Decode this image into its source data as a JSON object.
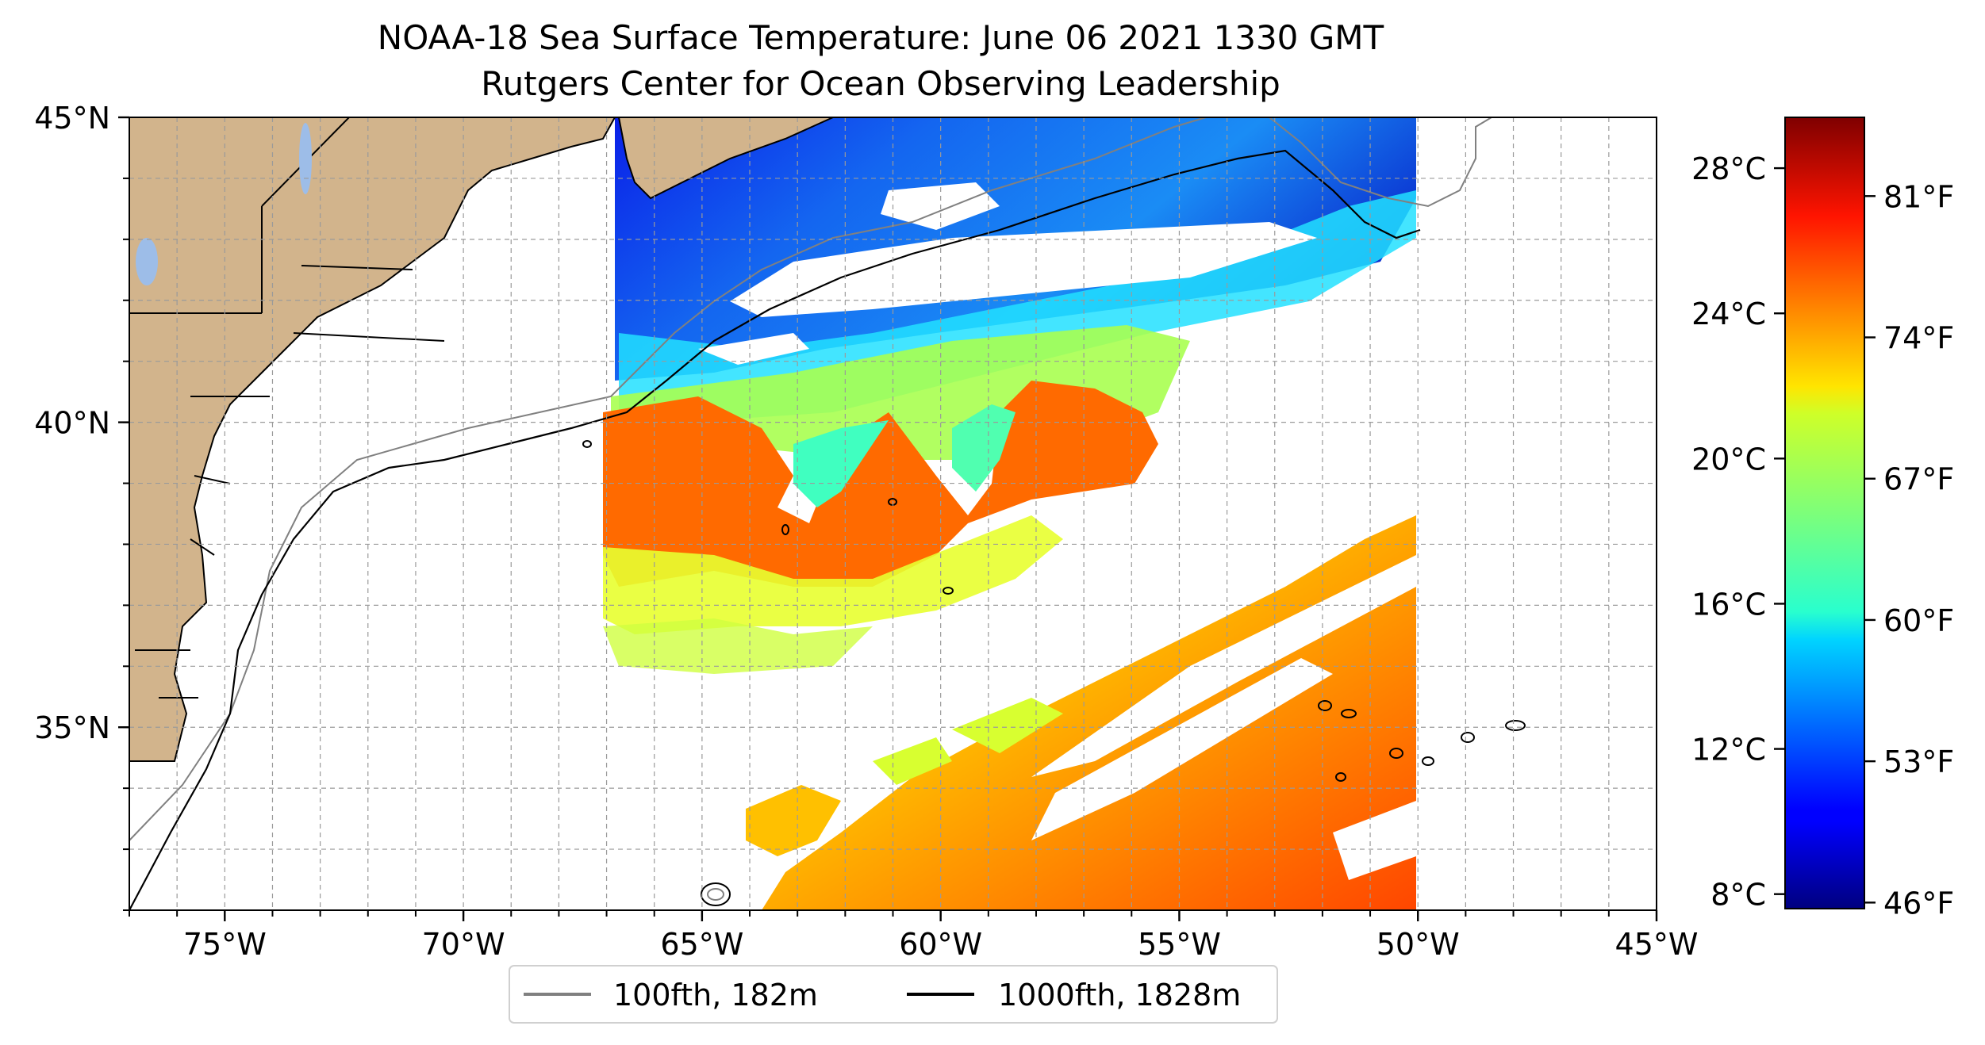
{
  "map": {
    "title": "NOAA-18 Sea Surface Temperature: June 06 2021 1330 GMT",
    "subtitle": "Rutgers Center for Ocean Observing Leadership",
    "lon_range": [
      -77,
      -45
    ],
    "lat_range": [
      32,
      45
    ],
    "lon_ticks": [
      {
        "value": -75,
        "label": "75°W"
      },
      {
        "value": -70,
        "label": "70°W"
      },
      {
        "value": -65,
        "label": "65°W"
      },
      {
        "value": -60,
        "label": "60°W"
      },
      {
        "value": -55,
        "label": "55°W"
      },
      {
        "value": -50,
        "label": "50°W"
      },
      {
        "value": -45,
        "label": "45°W"
      }
    ],
    "lat_ticks": [
      {
        "value": 45,
        "label": "45°N"
      },
      {
        "value": 40,
        "label": "40°N"
      },
      {
        "value": 35,
        "label": "35°N"
      }
    ],
    "gridlines": true,
    "land_color": "#d2b48c",
    "lake_color": "#9dbde8",
    "legend": {
      "position": "bottom-center",
      "items": [
        {
          "label": "100fth, 182m",
          "color": "#808080"
        },
        {
          "label": "1000fth, 1828m",
          "color": "#000000"
        }
      ]
    }
  },
  "colorbar": {
    "colormap": "jet",
    "celsius_range": [
      7.6,
      29.4
    ],
    "celsius_ticks": [
      {
        "value": 28,
        "label": "28°C"
      },
      {
        "value": 24,
        "label": "24°C"
      },
      {
        "value": 20,
        "label": "20°C"
      },
      {
        "value": 16,
        "label": "16°C"
      },
      {
        "value": 12,
        "label": "12°C"
      },
      {
        "value": 8,
        "label": "8°C"
      }
    ],
    "fahrenheit_range": [
      45.7,
      84.9
    ],
    "fahrenheit_ticks": [
      {
        "value": 81,
        "label": "81°F"
      },
      {
        "value": 74,
        "label": "74°F"
      },
      {
        "value": 67,
        "label": "67°F"
      },
      {
        "value": 60,
        "label": "60°F"
      },
      {
        "value": 53,
        "label": "53°F"
      },
      {
        "value": 46,
        "label": "46°F"
      }
    ]
  }
}
